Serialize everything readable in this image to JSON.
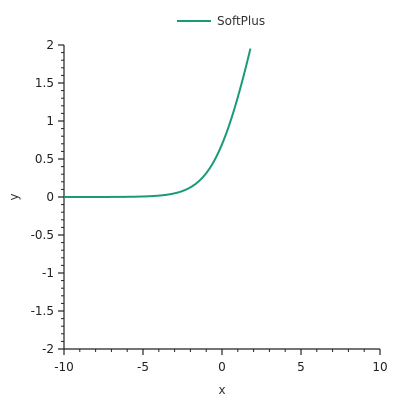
{
  "chart_data": {
    "type": "line",
    "title": "",
    "xlabel": "x",
    "ylabel": "y",
    "xlim": [
      -10,
      10
    ],
    "ylim": [
      -2,
      2
    ],
    "x_ticks": [
      -10,
      -5,
      0,
      5,
      10
    ],
    "y_ticks": [
      -2,
      -1.5,
      -1,
      -0.5,
      0,
      0.5,
      1,
      1.5,
      2
    ],
    "grid": false,
    "legend_position": "top-center",
    "series": [
      {
        "name": "SoftPlus",
        "color": "#1a9a78",
        "x": [
          -10,
          -9,
          -8,
          -7,
          -6,
          -5,
          -4.5,
          -4,
          -3.5,
          -3,
          -2.5,
          -2,
          -1.5,
          -1,
          -0.5,
          0,
          0.5,
          1,
          1.5,
          1.8
        ],
        "y": [
          4.54e-05,
          0.000123,
          0.000335,
          0.000911,
          0.00248,
          0.00672,
          0.011,
          0.0181,
          0.0298,
          0.0486,
          0.0789,
          0.127,
          0.201,
          0.313,
          0.474,
          0.693,
          0.974,
          1.313,
          1.701,
          1.953
        ]
      }
    ]
  }
}
